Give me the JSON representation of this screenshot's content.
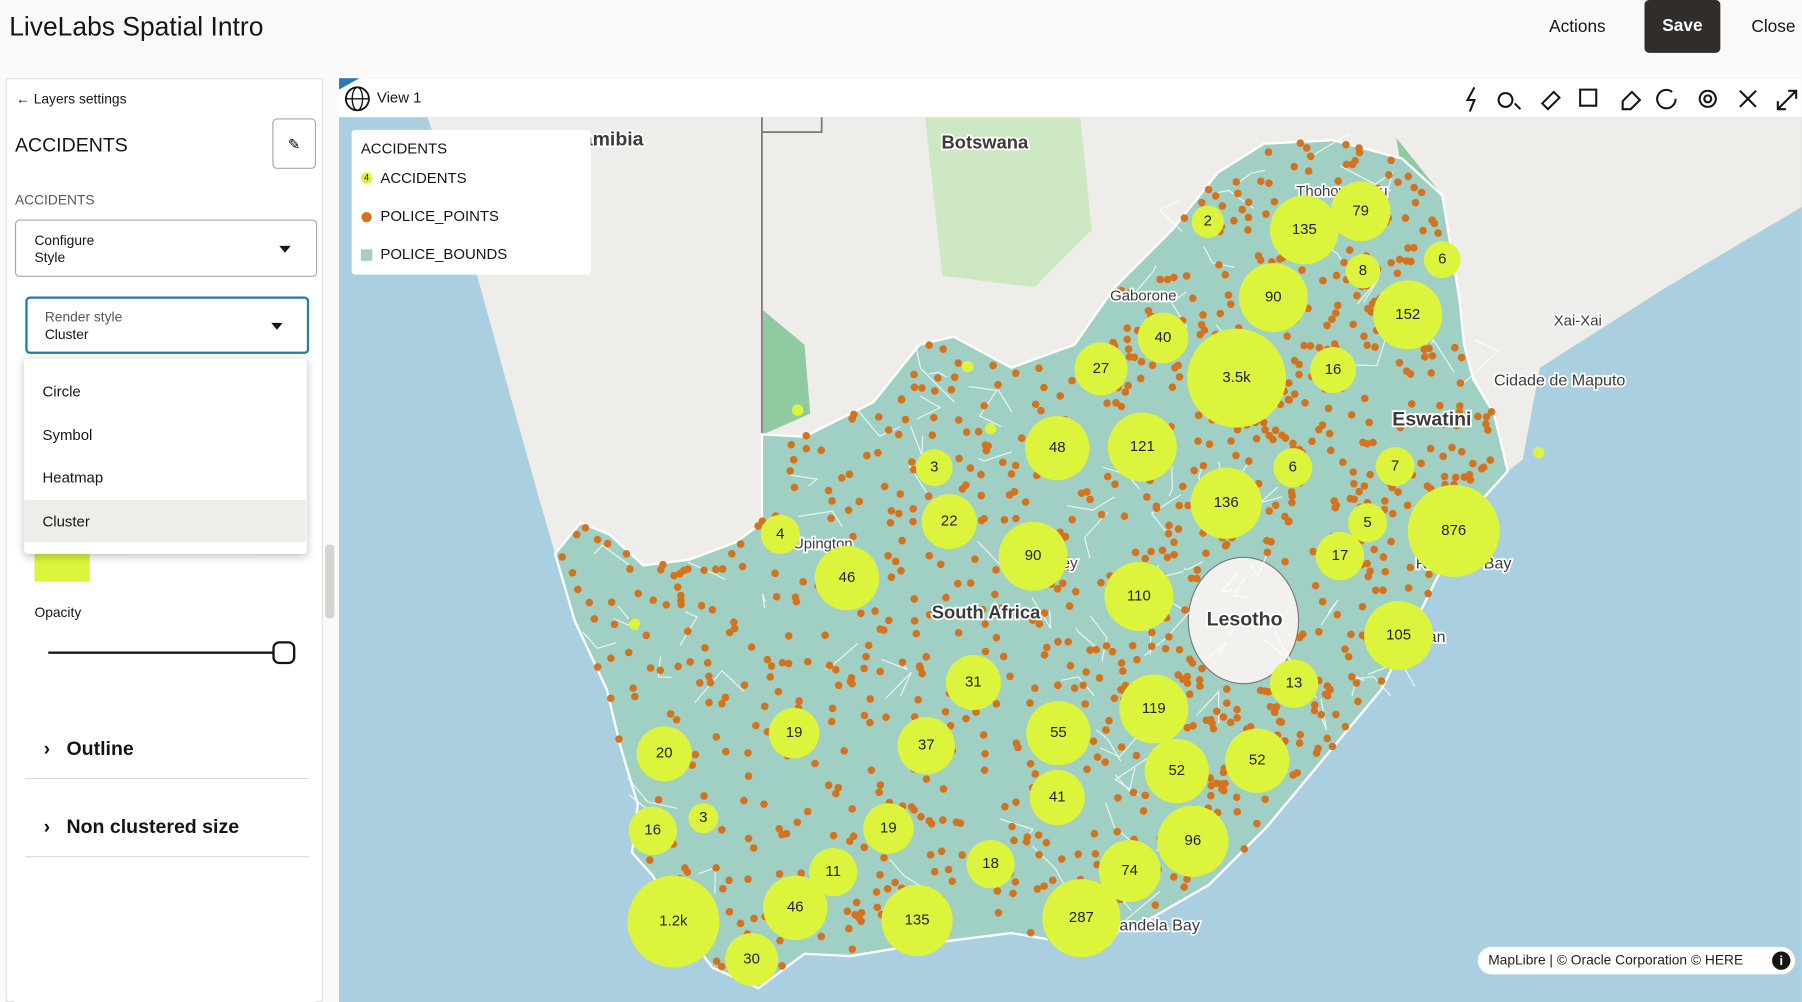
{
  "header": {
    "title": "LiveLabs Spatial Intro",
    "actions": "Actions",
    "save": "Save",
    "close": "Close"
  },
  "sidebar": {
    "back": "Layers settings",
    "layer_title": "ACCIDENTS",
    "section": "ACCIDENTS",
    "configure": "Configure Style",
    "render_style": {
      "label": "Render style",
      "value": "Cluster"
    },
    "options": [
      "Circle",
      "Symbol",
      "Heatmap",
      "Cluster"
    ],
    "opacity": "Opacity",
    "sections": [
      "Outline",
      "Non clustered size"
    ]
  },
  "map": {
    "view": "View 1",
    "legend": {
      "title": "ACCIDENTS",
      "items": [
        {
          "icon": "4",
          "label": "ACCIDENTS"
        },
        {
          "label": "POLICE_POINTS"
        },
        {
          "label": "POLICE_BOUNDS"
        }
      ]
    },
    "places": [
      "Namibia",
      "Botswana",
      "Gaborone",
      "Thohoyandou",
      "Xai-Xai",
      "Cidade de Maputo",
      "Eswatini",
      "Richards Bay",
      "Durban",
      "Lesotho",
      "South Africa",
      "Nelson Mandela Bay",
      "Upington",
      "Kimberley"
    ],
    "clusters": [
      "2",
      "135",
      "79",
      "6",
      "8",
      "90",
      "152",
      "40",
      "27",
      "3.5k",
      "16",
      "48",
      "121",
      "3",
      "6",
      "7",
      "136",
      "22",
      "4",
      "5",
      "876",
      "90",
      "46",
      "110",
      "17",
      "105",
      "31",
      "13",
      "19",
      "37",
      "55",
      "119",
      "20",
      "52",
      "52",
      "41",
      "16",
      "3",
      "19",
      "11",
      "18",
      "96",
      "74",
      "1.2k",
      "46",
      "135",
      "287",
      "30"
    ],
    "attribution": "MapLibre | © Oracle Corporation  © HERE"
  }
}
